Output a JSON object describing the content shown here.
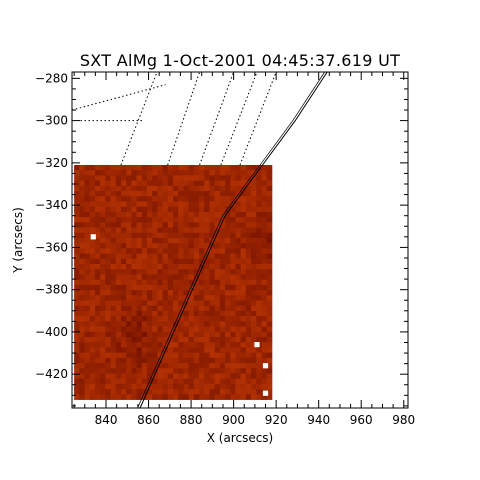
{
  "chart_data": {
    "type": "heatmap",
    "title": "SXT AlMg  1-Oct-2001  04:45:37.619  UT",
    "xlabel": "X (arcsecs)",
    "ylabel": "Y (arcsecs)",
    "xlim": [
      824,
      982
    ],
    "ylim": [
      -436,
      -277
    ],
    "x_ticks": [
      840,
      860,
      880,
      900,
      920,
      940,
      960,
      980
    ],
    "x_tick_labels": [
      "840",
      "860",
      "880",
      "900",
      "920",
      "940",
      "960",
      "980"
    ],
    "y_ticks": [
      -420,
      -400,
      -380,
      -360,
      -340,
      -320,
      -300,
      -280
    ],
    "y_tick_labels": [
      "−420",
      "−400",
      "−380",
      "−360",
      "−340",
      "−320",
      "−300",
      "−280"
    ],
    "image_extent": {
      "x": [
        825,
        918
      ],
      "y": [
        -432,
        -321
      ]
    },
    "image_grid": {
      "cols": 38,
      "rows": 45
    },
    "colormap": [
      "#7a1400",
      "#c23800"
    ],
    "bright_pixels": [
      {
        "x": 834,
        "y": -355
      },
      {
        "x": 911,
        "y": -406
      },
      {
        "x": 915,
        "y": -416
      },
      {
        "x": 915,
        "y": -429
      }
    ],
    "limb_line": {
      "points": [
        [
          856,
          -436
        ],
        [
          896,
          -345
        ],
        [
          929,
          -300
        ],
        [
          944,
          -277
        ]
      ]
    },
    "grid_lines": [
      [
        [
          824,
          -295
        ],
        [
          868,
          -283
        ]
      ],
      [
        [
          847,
          -321
        ],
        [
          864,
          -277
        ]
      ],
      [
        [
          869,
          -321
        ],
        [
          884,
          -277
        ]
      ],
      [
        [
          884,
          -321
        ],
        [
          900,
          -277
        ]
      ],
      [
        [
          894,
          -321
        ],
        [
          911,
          -277
        ]
      ],
      [
        [
          903,
          -321
        ],
        [
          920,
          -277
        ]
      ],
      [
        [
          828,
          -300
        ],
        [
          857,
          -300
        ]
      ]
    ]
  }
}
